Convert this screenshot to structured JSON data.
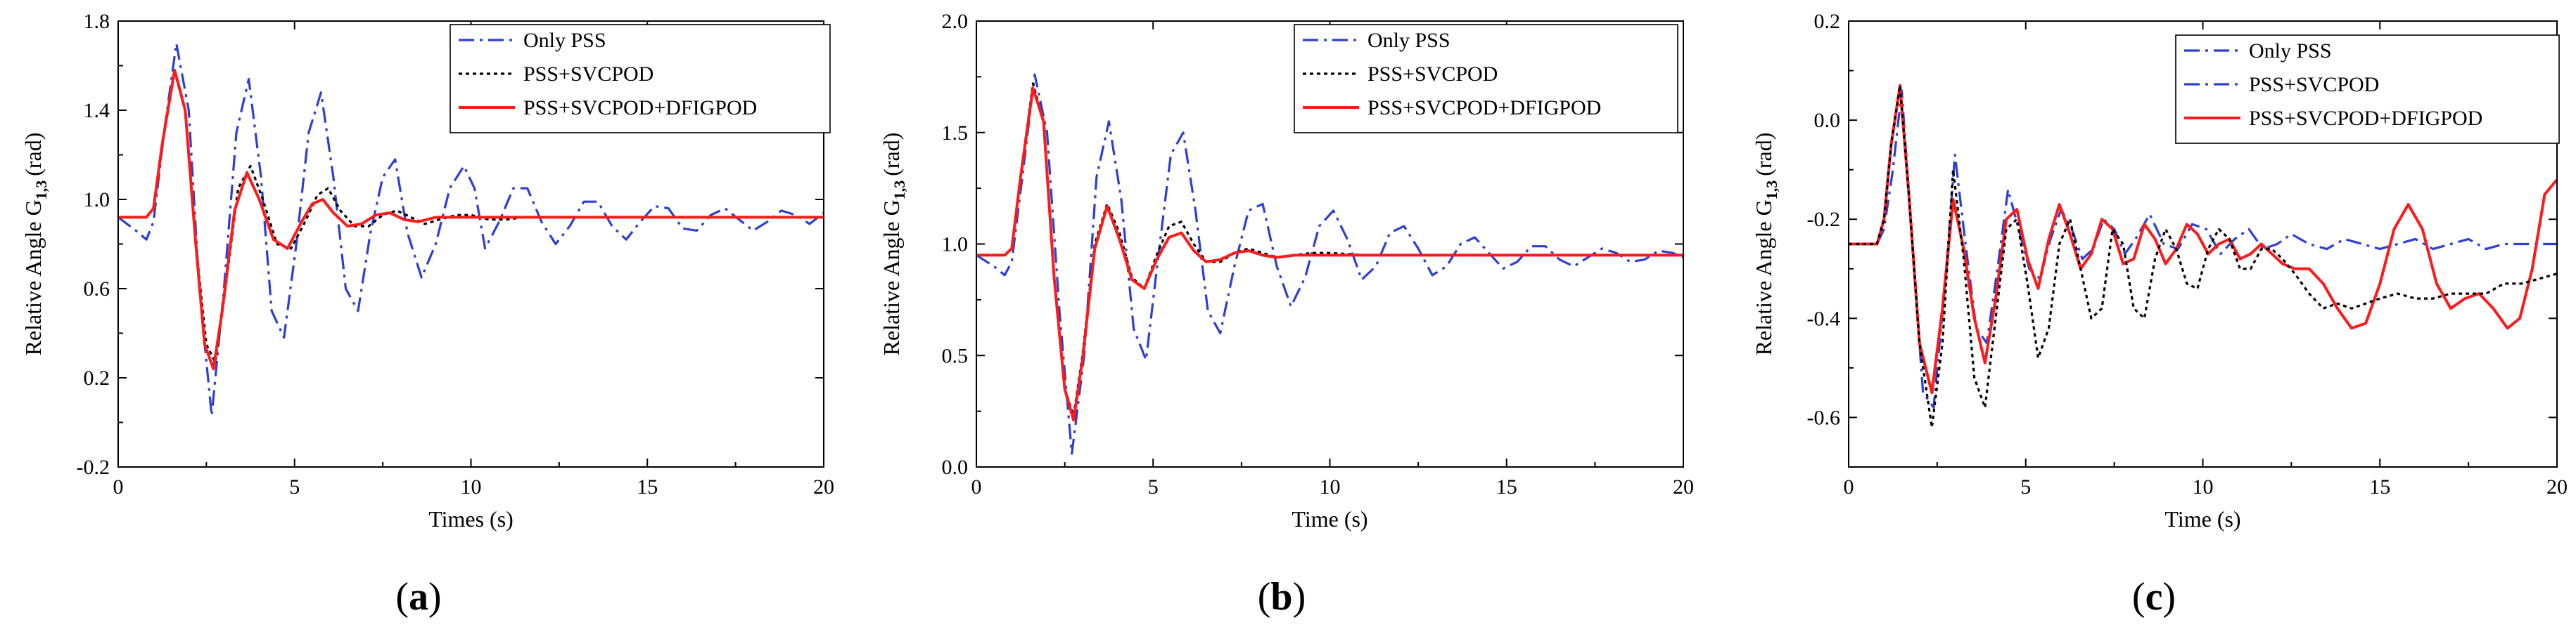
{
  "colors": {
    "blue": "#2b3fd6",
    "black": "#000000",
    "red": "#ff1a1a"
  },
  "chart_data": [
    {
      "type": "line",
      "panel_label": "a",
      "xlabel": "Times (s)",
      "ylabel": "Relative Angle G",
      "ylabel_sub": "1,3",
      "ylabel_unit": "(rad)",
      "xlim": [
        0,
        20
      ],
      "ylim": [
        -0.2,
        1.8
      ],
      "xticks": [
        0,
        5,
        10,
        15,
        20
      ],
      "xtick_labels": [
        "0",
        "5",
        "10",
        "15",
        "20"
      ],
      "yticks": [
        -0.2,
        0.2,
        0.6,
        1.0,
        1.4,
        1.8
      ],
      "ytick_labels": [
        "-0.2",
        "0.2",
        "0.6",
        "1.0",
        "1.4",
        "1.8"
      ],
      "legend_position": "top-right",
      "series": [
        {
          "name": "Only PSS",
          "style": "dashdot",
          "color": "#2b3fd6",
          "x": [
            0,
            0.5,
            0.8,
            1.0,
            1.3,
            1.65,
            2.0,
            2.3,
            2.65,
            3.0,
            3.35,
            3.7,
            4.05,
            4.35,
            4.7,
            5.05,
            5.4,
            5.75,
            6.1,
            6.45,
            6.8,
            7.15,
            7.5,
            7.85,
            8.2,
            8.6,
            9.0,
            9.4,
            9.8,
            10.1,
            10.4,
            10.8,
            11.2,
            11.6,
            12.0,
            12.4,
            12.8,
            13.2,
            13.6,
            14.0,
            14.4,
            14.8,
            15.2,
            15.6,
            16.0,
            16.4,
            16.8,
            17.2,
            17.6,
            18.0,
            18.4,
            18.8,
            19.2,
            19.6,
            20.0
          ],
          "y": [
            0.92,
            0.86,
            0.82,
            0.9,
            1.3,
            1.7,
            1.4,
            0.6,
            0.03,
            0.6,
            1.3,
            1.54,
            1.1,
            0.5,
            0.38,
            0.8,
            1.3,
            1.48,
            1.1,
            0.6,
            0.5,
            0.85,
            1.1,
            1.18,
            0.85,
            0.65,
            0.8,
            1.05,
            1.15,
            1.05,
            0.78,
            0.9,
            1.05,
            1.05,
            0.9,
            0.8,
            0.88,
            0.99,
            0.99,
            0.88,
            0.82,
            0.9,
            0.97,
            0.96,
            0.87,
            0.86,
            0.93,
            0.96,
            0.91,
            0.86,
            0.9,
            0.95,
            0.93,
            0.89,
            0.94
          ]
        },
        {
          "name": "PSS+SVCPOD",
          "style": "dotted",
          "color": "#000000",
          "x": [
            0,
            0.8,
            1.0,
            1.25,
            1.6,
            1.9,
            2.2,
            2.5,
            2.75,
            3.0,
            3.4,
            3.75,
            4.1,
            4.5,
            4.9,
            5.3,
            5.65,
            5.95,
            6.3,
            6.7,
            7.1,
            7.5,
            7.9,
            8.3,
            8.7,
            9.1,
            9.6,
            10.0,
            10.5,
            11.0,
            11.5,
            12.0,
            13.0,
            14.0,
            15.0,
            16.0,
            17.0,
            18.0,
            19.0,
            20.0
          ],
          "y": [
            0.92,
            0.92,
            0.96,
            1.25,
            1.58,
            1.4,
            0.8,
            0.35,
            0.27,
            0.55,
            1.05,
            1.15,
            1.0,
            0.8,
            0.78,
            0.9,
            1.02,
            1.05,
            0.95,
            0.88,
            0.88,
            0.93,
            0.95,
            0.92,
            0.89,
            0.91,
            0.93,
            0.93,
            0.91,
            0.91,
            0.92,
            0.92,
            0.92,
            0.92,
            0.92,
            0.92,
            0.92,
            0.92,
            0.92,
            0.92
          ]
        },
        {
          "name": "PSS+SVCPOD+DFIGPOD",
          "style": "solid",
          "color": "#ff1a1a",
          "x": [
            0,
            0.8,
            1.0,
            1.25,
            1.6,
            1.9,
            2.2,
            2.45,
            2.7,
            2.95,
            3.3,
            3.65,
            4.0,
            4.4,
            4.8,
            5.2,
            5.5,
            5.8,
            6.1,
            6.5,
            6.9,
            7.3,
            7.7,
            8.1,
            8.5,
            9.0,
            9.5,
            10.0,
            11.0,
            12.0,
            13.0,
            14.0,
            15.0,
            16.0,
            17.0,
            18.0,
            19.0,
            20.0
          ],
          "y": [
            0.92,
            0.92,
            0.96,
            1.25,
            1.58,
            1.4,
            0.8,
            0.35,
            0.24,
            0.5,
            0.95,
            1.12,
            1.0,
            0.82,
            0.78,
            0.9,
            0.98,
            1.0,
            0.94,
            0.88,
            0.89,
            0.93,
            0.94,
            0.91,
            0.9,
            0.92,
            0.92,
            0.92,
            0.92,
            0.92,
            0.92,
            0.92,
            0.92,
            0.92,
            0.92,
            0.92,
            0.92,
            0.92
          ]
        }
      ]
    },
    {
      "type": "line",
      "panel_label": "b",
      "xlabel": "Time (s)",
      "ylabel": "Relative Angle G",
      "ylabel_sub": "1,3",
      "ylabel_unit": "(rad)",
      "xlim": [
        0,
        20
      ],
      "ylim": [
        0.0,
        2.0
      ],
      "xticks": [
        0,
        5,
        10,
        15,
        20
      ],
      "xtick_labels": [
        "0",
        "5",
        "10",
        "15",
        "20"
      ],
      "yticks": [
        0.0,
        0.5,
        1.0,
        1.5,
        2.0
      ],
      "ytick_labels": [
        "0.0",
        "0.5",
        "1.0",
        "1.5",
        "2.0"
      ],
      "legend_position": "top-right",
      "series": [
        {
          "name": "Only PSS",
          "style": "dashdot",
          "color": "#2b3fd6",
          "x": [
            0,
            0.5,
            0.8,
            1.0,
            1.3,
            1.65,
            2.0,
            2.35,
            2.7,
            3.05,
            3.4,
            3.75,
            4.1,
            4.45,
            4.8,
            5.15,
            5.5,
            5.85,
            6.2,
            6.55,
            6.9,
            7.3,
            7.7,
            8.1,
            8.5,
            8.9,
            9.3,
            9.7,
            10.1,
            10.5,
            10.9,
            11.3,
            11.7,
            12.1,
            12.5,
            12.9,
            13.3,
            13.7,
            14.1,
            14.5,
            14.9,
            15.3,
            15.7,
            16.1,
            16.5,
            16.9,
            17.3,
            17.7,
            18.1,
            18.5,
            18.9,
            19.3,
            19.7,
            20.0
          ],
          "y": [
            0.95,
            0.9,
            0.86,
            0.92,
            1.3,
            1.76,
            1.5,
            0.7,
            0.06,
            0.5,
            1.3,
            1.55,
            1.2,
            0.62,
            0.48,
            0.95,
            1.4,
            1.5,
            1.15,
            0.7,
            0.6,
            0.9,
            1.15,
            1.18,
            0.9,
            0.72,
            0.85,
            1.08,
            1.15,
            1.02,
            0.84,
            0.9,
            1.05,
            1.08,
            0.98,
            0.86,
            0.9,
            1.0,
            1.03,
            0.96,
            0.89,
            0.92,
            0.99,
            0.99,
            0.93,
            0.9,
            0.94,
            0.98,
            0.96,
            0.92,
            0.93,
            0.97,
            0.96,
            0.94
          ]
        },
        {
          "name": "PSS+SVCPOD",
          "style": "dotted",
          "color": "#000000",
          "x": [
            0,
            0.8,
            1.0,
            1.25,
            1.6,
            1.9,
            2.2,
            2.5,
            2.75,
            3.0,
            3.35,
            3.7,
            4.05,
            4.4,
            4.75,
            5.1,
            5.45,
            5.8,
            6.15,
            6.5,
            6.9,
            7.3,
            7.7,
            8.1,
            8.5,
            9.0,
            9.5,
            10.0,
            11.0,
            12.0,
            13.0,
            14.0,
            15.0,
            16.0,
            17.0,
            18.0,
            19.0,
            20.0
          ],
          "y": [
            0.95,
            0.95,
            0.98,
            1.3,
            1.72,
            1.55,
            0.85,
            0.35,
            0.23,
            0.5,
            1.0,
            1.18,
            1.05,
            0.85,
            0.8,
            0.95,
            1.08,
            1.1,
            1.0,
            0.92,
            0.92,
            0.96,
            0.98,
            0.96,
            0.94,
            0.95,
            0.96,
            0.96,
            0.95,
            0.95,
            0.95,
            0.95,
            0.95,
            0.95,
            0.95,
            0.95,
            0.95,
            0.95
          ]
        },
        {
          "name": "PSS+SVCPOD+DFIGPOD",
          "style": "solid",
          "color": "#ff1a1a",
          "x": [
            0,
            0.8,
            1.0,
            1.25,
            1.6,
            1.9,
            2.2,
            2.5,
            2.75,
            3.0,
            3.35,
            3.7,
            4.05,
            4.4,
            4.75,
            5.1,
            5.45,
            5.8,
            6.15,
            6.5,
            6.9,
            7.3,
            7.7,
            8.1,
            8.5,
            9.0,
            9.5,
            10.0,
            11.0,
            12.0,
            13.0,
            14.0,
            15.0,
            16.0,
            17.0,
            18.0,
            19.0,
            20.0
          ],
          "y": [
            0.95,
            0.95,
            0.98,
            1.3,
            1.7,
            1.55,
            0.85,
            0.35,
            0.21,
            0.48,
            0.98,
            1.17,
            1.02,
            0.84,
            0.8,
            0.93,
            1.03,
            1.05,
            0.97,
            0.92,
            0.93,
            0.96,
            0.97,
            0.95,
            0.94,
            0.95,
            0.95,
            0.95,
            0.95,
            0.95,
            0.95,
            0.95,
            0.95,
            0.95,
            0.95,
            0.95,
            0.95,
            0.95
          ]
        }
      ]
    },
    {
      "type": "line",
      "panel_label": "c",
      "xlabel": "Time (s)",
      "ylabel": "Relative Angle G",
      "ylabel_sub": "1,3",
      "ylabel_unit": "(rad)",
      "xlim": [
        0,
        20
      ],
      "ylim": [
        -0.7,
        0.2
      ],
      "xticks": [
        0,
        5,
        10,
        15,
        20
      ],
      "xtick_labels": [
        "0",
        "5",
        "10",
        "15",
        "20"
      ],
      "yticks": [
        -0.6,
        -0.4,
        -0.2,
        0.0,
        0.2
      ],
      "ytick_labels": [
        "-0.6",
        "-0.4",
        "-0.2",
        "0.0",
        "0.2"
      ],
      "legend_position": "top-right",
      "series": [
        {
          "name": "Only PSS",
          "style": "dashdot",
          "color": "#2b3fd6",
          "x": [
            0,
            0.8,
            1.0,
            1.25,
            1.5,
            1.8,
            2.1,
            2.4,
            2.7,
            3.0,
            3.3,
            3.6,
            3.9,
            4.2,
            4.5,
            4.8,
            5.1,
            5.4,
            5.7,
            6.0,
            6.3,
            6.6,
            6.9,
            7.2,
            7.5,
            7.8,
            8.1,
            8.5,
            8.9,
            9.3,
            9.7,
            10.1,
            10.5,
            10.9,
            11.3,
            11.7,
            12.1,
            12.5,
            13.0,
            13.5,
            14.0,
            14.5,
            15.0,
            15.5,
            16.0,
            16.5,
            17.0,
            17.5,
            18.0,
            18.5,
            19.0,
            19.5,
            20.0
          ],
          "y": [
            -0.25,
            -0.25,
            -0.22,
            -0.1,
            0.06,
            -0.25,
            -0.55,
            -0.58,
            -0.35,
            -0.07,
            -0.25,
            -0.42,
            -0.45,
            -0.3,
            -0.14,
            -0.22,
            -0.3,
            -0.32,
            -0.24,
            -0.18,
            -0.22,
            -0.28,
            -0.26,
            -0.2,
            -0.22,
            -0.27,
            -0.24,
            -0.19,
            -0.25,
            -0.26,
            -0.21,
            -0.22,
            -0.27,
            -0.24,
            -0.22,
            -0.26,
            -0.25,
            -0.23,
            -0.25,
            -0.26,
            -0.24,
            -0.25,
            -0.26,
            -0.25,
            -0.24,
            -0.26,
            -0.25,
            -0.24,
            -0.26,
            -0.25,
            -0.25,
            -0.25,
            -0.25
          ]
        },
        {
          "name": "PSS+SVCPOD",
          "style": "dashdot",
          "color": "#2b3fd6",
          "x": [],
          "y": []
        },
        {
          "name": "PSS+SVCPOD+DFIGPOD",
          "style": "solid",
          "color": "#ff1a1a",
          "x": [
            0,
            0.8,
            1.0,
            1.2,
            1.45,
            1.7,
            2.0,
            2.35,
            2.65,
            2.95,
            3.25,
            3.55,
            3.85,
            4.15,
            4.45,
            4.75,
            5.05,
            5.35,
            5.65,
            5.95,
            6.25,
            6.55,
            6.85,
            7.15,
            7.45,
            7.75,
            8.05,
            8.35,
            8.65,
            8.95,
            9.25,
            9.55,
            9.85,
            10.15,
            10.45,
            10.75,
            11.05,
            11.35,
            11.65,
            11.95,
            12.25,
            12.6,
            13.0,
            13.4,
            13.8,
            14.2,
            14.6,
            15.0,
            15.4,
            15.8,
            16.2,
            16.6,
            17.0,
            17.4,
            17.8,
            18.2,
            18.6,
            18.95,
            19.3,
            19.65,
            20.0
          ],
          "y": [
            -0.25,
            -0.25,
            -0.2,
            -0.05,
            0.07,
            -0.15,
            -0.45,
            -0.55,
            -0.38,
            -0.16,
            -0.26,
            -0.4,
            -0.49,
            -0.36,
            -0.2,
            -0.18,
            -0.28,
            -0.34,
            -0.24,
            -0.17,
            -0.23,
            -0.3,
            -0.27,
            -0.2,
            -0.22,
            -0.29,
            -0.28,
            -0.21,
            -0.24,
            -0.29,
            -0.26,
            -0.21,
            -0.23,
            -0.27,
            -0.25,
            -0.24,
            -0.28,
            -0.27,
            -0.25,
            -0.27,
            -0.29,
            -0.3,
            -0.3,
            -0.33,
            -0.38,
            -0.42,
            -0.41,
            -0.33,
            -0.22,
            -0.17,
            -0.22,
            -0.33,
            -0.38,
            -0.36,
            -0.35,
            -0.38,
            -0.42,
            -0.4,
            -0.3,
            -0.15,
            -0.12
          ]
        },
        {
          "name": "PSS+SVCPOD (black)",
          "style": "dotted",
          "color": "#000000",
          "in_legend": false,
          "x": [
            0,
            0.8,
            1.0,
            1.2,
            1.45,
            1.7,
            2.0,
            2.35,
            2.65,
            2.95,
            3.25,
            3.55,
            3.85,
            4.15,
            4.45,
            4.75,
            5.05,
            5.35,
            5.65,
            5.95,
            6.25,
            6.55,
            6.85,
            7.15,
            7.45,
            7.75,
            8.05,
            8.35,
            8.65,
            8.95,
            9.25,
            9.55,
            9.85,
            10.15,
            10.45,
            10.75,
            11.05,
            11.35,
            11.65,
            11.95,
            12.25,
            12.6,
            13.0,
            13.4,
            13.8,
            14.2,
            14.6,
            15.0,
            15.5,
            16.0,
            16.5,
            17.0,
            17.5,
            18.0,
            18.5,
            19.0,
            19.5,
            20.0
          ],
          "y": [
            -0.25,
            -0.25,
            -0.2,
            -0.05,
            0.07,
            -0.15,
            -0.45,
            -0.62,
            -0.45,
            -0.1,
            -0.28,
            -0.52,
            -0.58,
            -0.4,
            -0.22,
            -0.2,
            -0.33,
            -0.48,
            -0.42,
            -0.25,
            -0.2,
            -0.3,
            -0.4,
            -0.38,
            -0.22,
            -0.25,
            -0.38,
            -0.4,
            -0.28,
            -0.22,
            -0.26,
            -0.33,
            -0.34,
            -0.26,
            -0.22,
            -0.24,
            -0.3,
            -0.3,
            -0.26,
            -0.26,
            -0.28,
            -0.31,
            -0.35,
            -0.38,
            -0.37,
            -0.38,
            -0.37,
            -0.36,
            -0.35,
            -0.36,
            -0.36,
            -0.35,
            -0.35,
            -0.35,
            -0.33,
            -0.33,
            -0.32,
            -0.31
          ]
        }
      ]
    }
  ]
}
